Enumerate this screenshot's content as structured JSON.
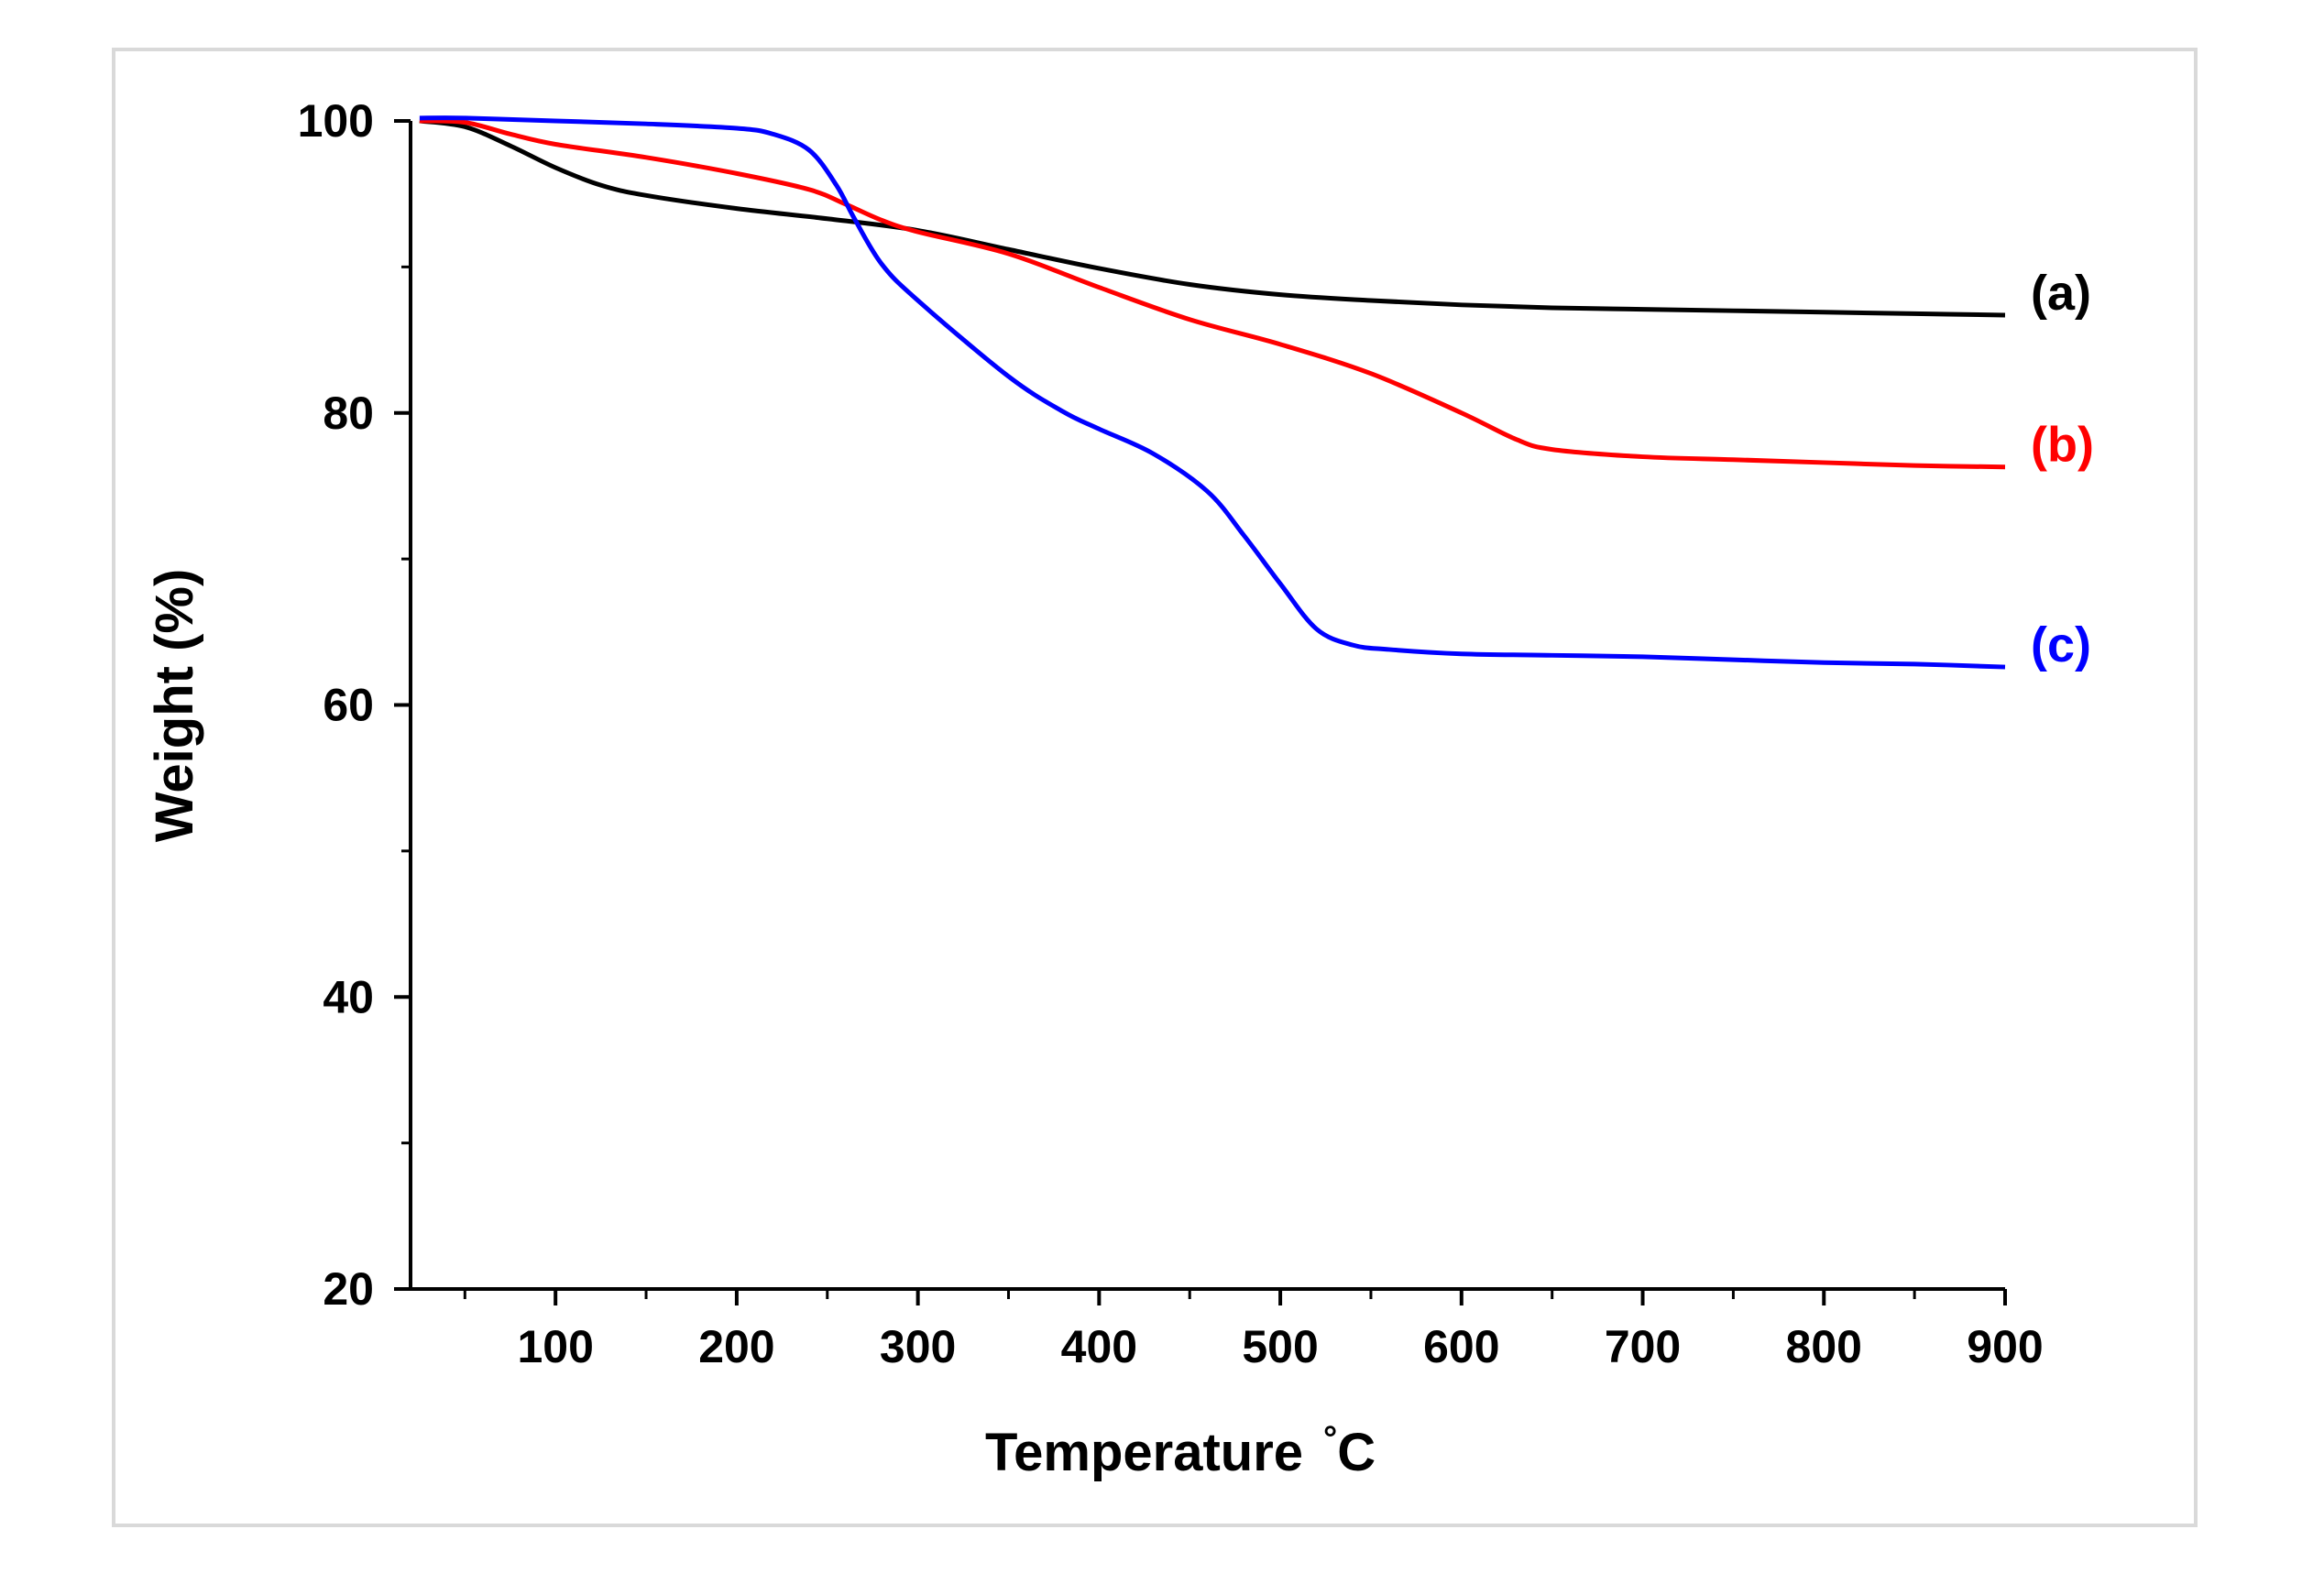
{
  "chart_data": {
    "type": "line",
    "title": "",
    "xlabel": "Temperature",
    "xlabel_unit": "C",
    "xlabel_degree": "°",
    "ylabel": "Weight (%)",
    "xlim": [
      20,
      900
    ],
    "ylim": [
      20,
      100
    ],
    "x_ticks": [
      100,
      200,
      300,
      400,
      500,
      600,
      700,
      800,
      900
    ],
    "y_ticks": [
      20,
      40,
      60,
      80,
      100
    ],
    "grid": false,
    "series": [
      {
        "name": "(a)",
        "color": "#000000",
        "x": [
          25,
          50,
          75,
          100,
          125,
          150,
          200,
          250,
          300,
          350,
          400,
          450,
          500,
          550,
          600,
          650,
          700,
          750,
          800,
          850,
          900
        ],
        "y": [
          100,
          99.6,
          98.3,
          96.8,
          95.6,
          94.9,
          94.0,
          93.3,
          92.5,
          91.2,
          89.9,
          88.8,
          88.1,
          87.7,
          87.4,
          87.2,
          87.1,
          87.0,
          86.9,
          86.8,
          86.7
        ]
      },
      {
        "name": "(b)",
        "color": "#ff0000",
        "x": [
          25,
          50,
          75,
          100,
          150,
          200,
          240,
          260,
          280,
          300,
          350,
          400,
          450,
          500,
          550,
          600,
          630,
          650,
          700,
          750,
          800,
          850,
          900
        ],
        "y": [
          100,
          99.9,
          99.1,
          98.4,
          97.5,
          96.4,
          95.3,
          94.3,
          93.2,
          92.4,
          90.9,
          88.6,
          86.4,
          84.7,
          82.7,
          80.0,
          78.2,
          77.5,
          77.0,
          76.8,
          76.6,
          76.4,
          76.3
        ]
      },
      {
        "name": "(c)",
        "color": "#0000ff",
        "x": [
          25,
          50,
          100,
          150,
          200,
          220,
          240,
          255,
          265,
          280,
          300,
          350,
          380,
          400,
          430,
          460,
          480,
          500,
          520,
          540,
          560,
          600,
          650,
          700,
          750,
          800,
          850,
          900
        ],
        "y": [
          100.2,
          100.2,
          100.0,
          99.8,
          99.5,
          99.1,
          98.0,
          95.6,
          93.3,
          90.2,
          87.7,
          82.5,
          80.1,
          78.9,
          77.2,
          74.6,
          71.6,
          68.3,
          65.2,
          64.1,
          63.8,
          63.5,
          63.4,
          63.3,
          63.1,
          62.9,
          62.8,
          62.6
        ]
      }
    ]
  }
}
